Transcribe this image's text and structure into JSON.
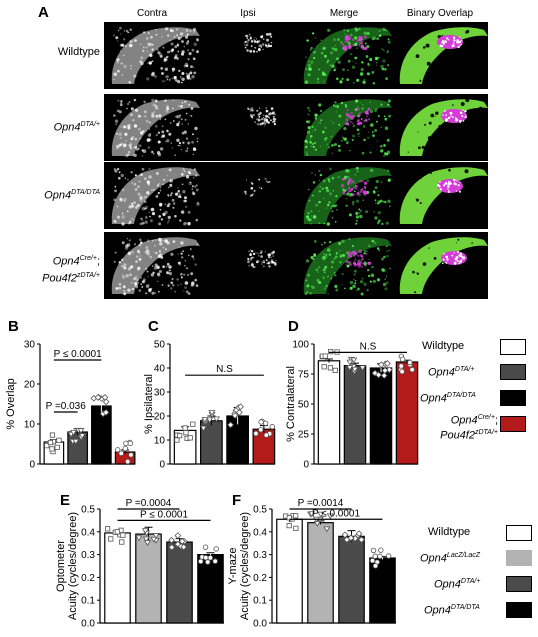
{
  "panel_letters": {
    "a": "A",
    "b": "B",
    "c": "C",
    "d": "D",
    "e": "E",
    "f": "F"
  },
  "micrograph": {
    "columns": [
      "Contra",
      "Ipsi",
      "Merge",
      "Binary Overlap"
    ],
    "rows": [
      {
        "main": "Wildtype",
        "sup": "",
        "extra": "",
        "extra_sup": ""
      },
      {
        "main": "Opn4",
        "sup": "DTA/+",
        "extra": "",
        "extra_sup": ""
      },
      {
        "main": "Opn4",
        "sup": "DTA/DTA",
        "extra": "",
        "extra_sup": ""
      },
      {
        "main": "Opn4",
        "sup": "Cre/+",
        "extra": "Pou4f2",
        "extra_sup": "zDTA/+"
      }
    ]
  },
  "legend_top": [
    {
      "main": "Wildtype",
      "sup": "",
      "extra": "",
      "extra_sup": "",
      "color": "#ffffff"
    },
    {
      "main": "Opn4",
      "sup": "DTA/+",
      "extra": "",
      "extra_sup": "",
      "color": "#4a4a4a"
    },
    {
      "main": "Opn4",
      "sup": "DTA/DTA",
      "extra": "",
      "extra_sup": "",
      "color": "#000000"
    },
    {
      "main": "Opn4",
      "sup": "Cre/+",
      "extra": "Pou4f2",
      "extra_sup": "zDTA/+",
      "color": "#b31b1b"
    }
  ],
  "legend_bottom": [
    {
      "main": "Wildtype",
      "sup": "",
      "color": "#ffffff"
    },
    {
      "main": "Opn4",
      "sup": "LacZ/LacZ",
      "color": "#b3b3b3"
    },
    {
      "main": "Opn4",
      "sup": "DTA/+",
      "color": "#4a4a4a"
    },
    {
      "main": "Opn4",
      "sup": "DTA/DTA",
      "color": "#000000"
    }
  ],
  "chart_data": [
    {
      "id": "B",
      "type": "bar",
      "title": "",
      "ylabel": "% Overlap",
      "ylim": [
        0,
        30
      ],
      "yticks": [
        0,
        10,
        20,
        30
      ],
      "categories": [
        "Wildtype",
        "Opn4 DTA/+",
        "Opn4 DTA/DTA",
        "Opn4 Cre/+; Pou4f2 zDTA/+"
      ],
      "values": [
        5.5,
        8,
        14.5,
        3
      ],
      "errors": [
        0.6,
        0.8,
        2.2,
        0.5
      ],
      "colors": [
        "#ffffff",
        "#4a4a4a",
        "#000000",
        "#b31b1b"
      ],
      "annotations": [
        {
          "text": "P =0.036",
          "from": 0,
          "to": 1,
          "y": 13
        },
        {
          "text": "P ≤ 0.0001",
          "from": 0,
          "to": 2,
          "y": 26
        }
      ]
    },
    {
      "id": "C",
      "type": "bar",
      "title": "",
      "ylabel": "% Ipsilateral",
      "ylim": [
        0,
        50
      ],
      "yticks": [
        0,
        10,
        20,
        30,
        40,
        50
      ],
      "categories": [
        "Wildtype",
        "Opn4 DTA/+",
        "Opn4 DTA/DTA",
        "Opn4 Cre/+; Pou4f2 zDTA/+"
      ],
      "values": [
        14,
        18,
        20,
        14.5
      ],
      "errors": [
        1.5,
        2,
        3.5,
        1.5
      ],
      "colors": [
        "#ffffff",
        "#4a4a4a",
        "#000000",
        "#b31b1b"
      ],
      "annotations": [
        {
          "text": "N.S",
          "from": 0,
          "to": 3,
          "y": 37
        }
      ]
    },
    {
      "id": "D",
      "type": "bar",
      "title": "",
      "ylabel": "% Contralateral",
      "ylim": [
        0,
        100
      ],
      "yticks": [
        0,
        25,
        50,
        75,
        100
      ],
      "categories": [
        "Wildtype",
        "Opn4 DTA/+",
        "Opn4 DTA/DTA",
        "Opn4 Cre/+; Pou4f2 zDTA/+"
      ],
      "values": [
        86,
        82,
        80,
        85
      ],
      "errors": [
        1.5,
        2,
        3.5,
        1.5
      ],
      "colors": [
        "#ffffff",
        "#4a4a4a",
        "#000000",
        "#b31b1b"
      ],
      "annotations": [
        {
          "text": "N.S",
          "from": 0,
          "to": 3,
          "y": 93
        }
      ]
    },
    {
      "id": "E",
      "type": "bar",
      "title": "",
      "ylabel": "Optometer\nAcuity (cycles/degree)",
      "ylim": [
        0,
        0.5
      ],
      "yticks": [
        0.0,
        0.1,
        0.2,
        0.3,
        0.4,
        0.5
      ],
      "categories": [
        "Wildtype",
        "Opn4 LacZ/LacZ",
        "Opn4 DTA/+",
        "Opn4 DTA/DTA"
      ],
      "values": [
        0.395,
        0.39,
        0.355,
        0.3
      ],
      "errors": [
        0.01,
        0.03,
        0.015,
        0.008
      ],
      "colors": [
        "#ffffff",
        "#b3b3b3",
        "#4a4a4a",
        "#000000"
      ],
      "annotations": [
        {
          "text": "P =0.0004",
          "from": 0,
          "to": 2,
          "y": 0.5
        },
        {
          "text": "P ≤ 0.0001",
          "from": 0,
          "to": 3,
          "y": 0.45
        }
      ]
    },
    {
      "id": "F",
      "type": "bar",
      "title": "",
      "ylabel": "Y-maze\nAcuity (cycles/degree)",
      "ylim": [
        0,
        0.5
      ],
      "yticks": [
        0.0,
        0.1,
        0.2,
        0.3,
        0.4,
        0.5
      ],
      "categories": [
        "Wildtype",
        "Opn4 LacZ/LacZ",
        "Opn4 DTA/+",
        "Opn4 DTA/DTA"
      ],
      "values": [
        0.455,
        0.44,
        0.38,
        0.285
      ],
      "errors": [
        0.012,
        0.008,
        0.025,
        0.006
      ],
      "colors": [
        "#ffffff",
        "#b3b3b3",
        "#4a4a4a",
        "#000000"
      ],
      "annotations": [
        {
          "text": "P =0.0014",
          "from": 0,
          "to": 2,
          "y": 0.5
        },
        {
          "text": "P ≤ 0.0001",
          "from": 0,
          "to": 3,
          "y": 0.455
        }
      ]
    }
  ]
}
